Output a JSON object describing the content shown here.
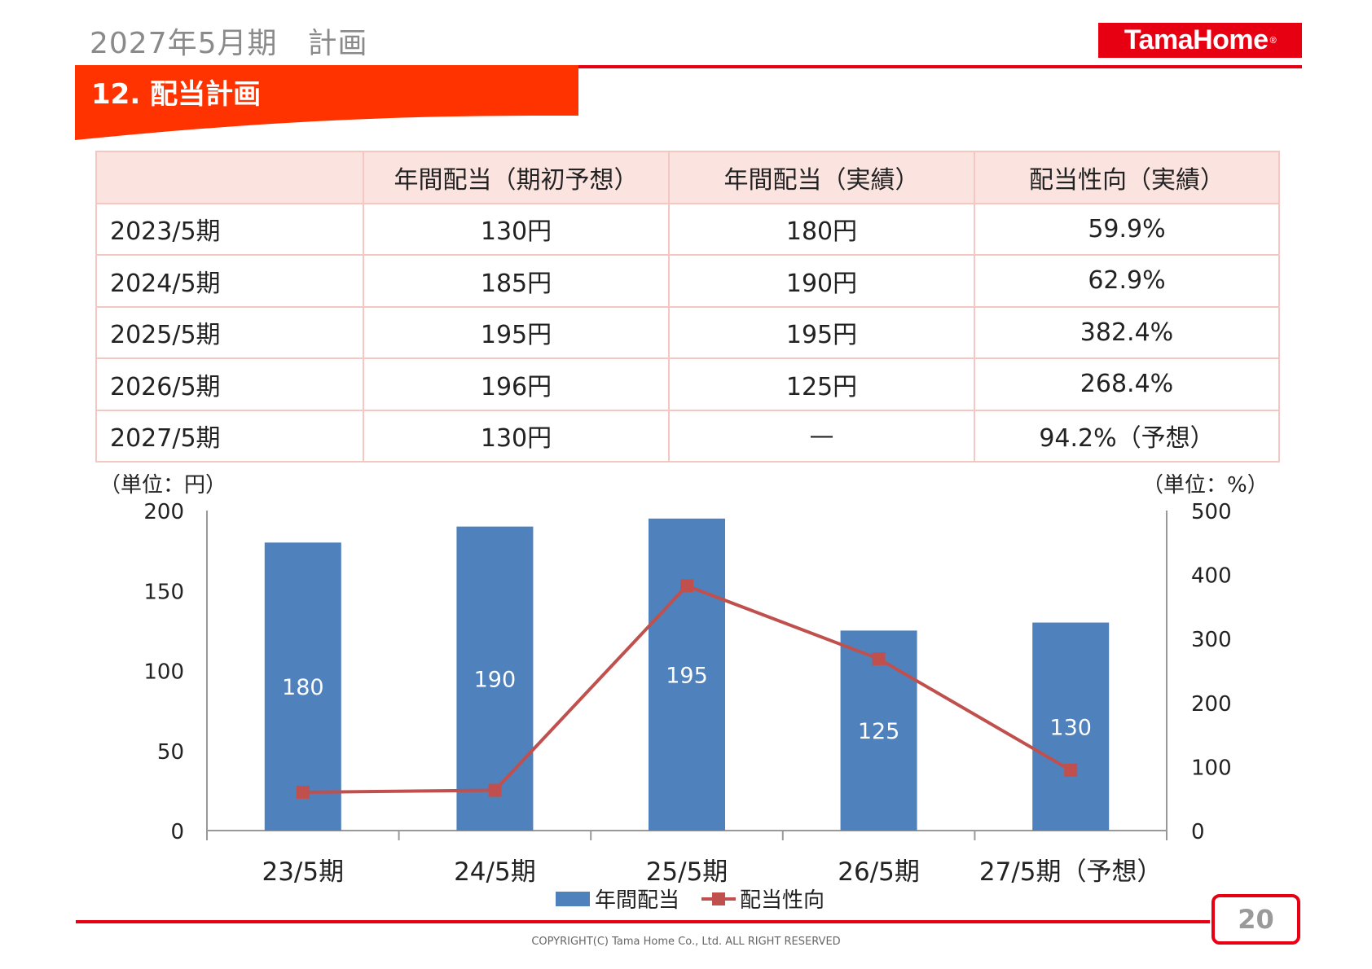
{
  "header": {
    "top_title": "2027年5月期　計画",
    "logo_text": "TamaHome",
    "logo_mark": "®",
    "section_title": "12. 配当計画"
  },
  "table": {
    "headers": [
      "",
      "年間配当（期初予想）",
      "年間配当（実績）",
      "配当性向（実績）"
    ],
    "rows": [
      [
        "2023/5期",
        "130円",
        "180円",
        "59.9%"
      ],
      [
        "2024/5期",
        "185円",
        "190円",
        "62.9%"
      ],
      [
        "2025/5期",
        "195円",
        "195円",
        "382.4%"
      ],
      [
        "2026/5期",
        "196円",
        "125円",
        "268.4%"
      ],
      [
        "2027/5期",
        "130円",
        "—",
        "94.2%（予想）"
      ]
    ]
  },
  "units": {
    "left": "（単位：円）",
    "right": "（単位：%）"
  },
  "colors": {
    "brand_red": "#e60012",
    "bar": "#4f81bd",
    "line": "#c0504d"
  },
  "chart_data": {
    "type": "bar",
    "categories": [
      "23/5期",
      "24/5期",
      "25/5期",
      "26/5期",
      "27/5期（予想）"
    ],
    "series": [
      {
        "name": "年間配当",
        "type": "bar",
        "axis": "left",
        "values": [
          180,
          190,
          195,
          125,
          130
        ]
      },
      {
        "name": "配当性向",
        "type": "line",
        "axis": "right",
        "values": [
          59.9,
          62.9,
          382.4,
          268.4,
          94.2
        ]
      }
    ],
    "ylim_left": [
      0,
      200
    ],
    "yticks_left": [
      0,
      50,
      100,
      150,
      200
    ],
    "ylim_right": [
      0,
      500
    ],
    "yticks_right": [
      0,
      100,
      200,
      300,
      400,
      500
    ],
    "data_labels": [
      "180",
      "190",
      "195",
      "125",
      "130"
    ],
    "grid": false,
    "legend": "bottom"
  },
  "footer": {
    "page_number": "20",
    "copyright": "COPYRIGHT(C)  Tama Home Co., Ltd.    ALL RIGHT RESERVED"
  }
}
